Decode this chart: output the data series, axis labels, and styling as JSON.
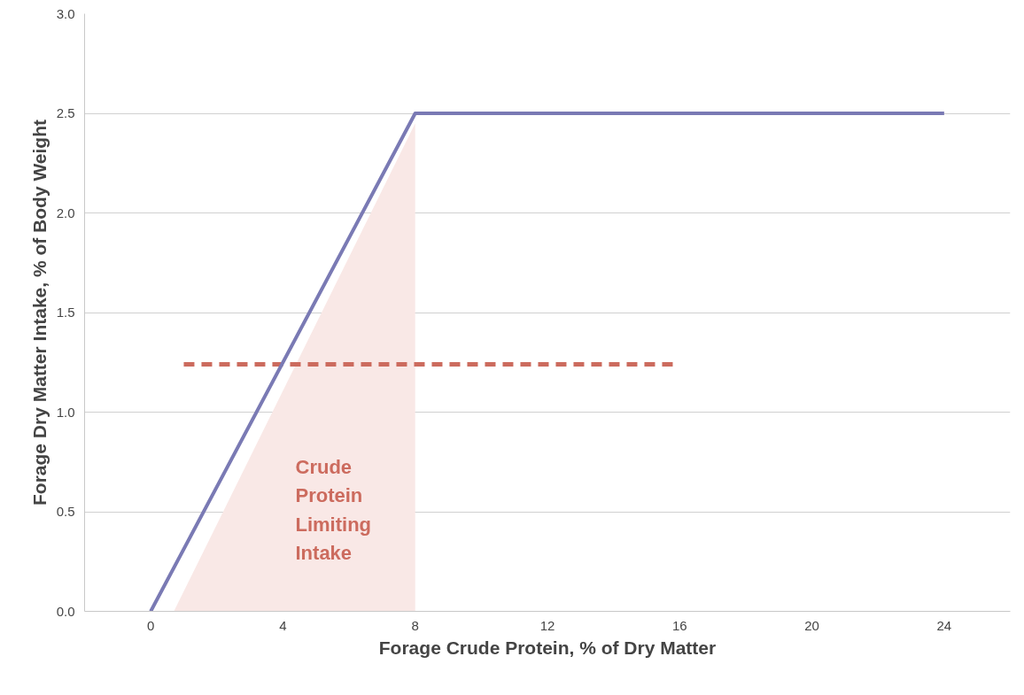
{
  "chart_data": {
    "type": "line",
    "xlabel": "Forage Crude Protein, % of Dry Matter",
    "ylabel": "Forage Dry Matter Intake, % of Body Weight",
    "xlim": [
      -2,
      26
    ],
    "ylim": [
      0,
      3
    ],
    "xticks": [
      0,
      4,
      8,
      12,
      16,
      20,
      24
    ],
    "yticks": [
      {
        "value": 0,
        "label": "0.0"
      },
      {
        "value": 0.5,
        "label": "0.5"
      },
      {
        "value": 1,
        "label": "1.0"
      },
      {
        "value": 1.5,
        "label": "1.5"
      },
      {
        "value": 2,
        "label": "2.0"
      },
      {
        "value": 2.5,
        "label": "2.5"
      },
      {
        "value": 3,
        "label": "3.0"
      }
    ],
    "grid": "y",
    "series": [
      {
        "type": "area",
        "color": "#f9e8e6",
        "x": [
          0.7,
          8
        ],
        "values": [
          0,
          2.45
        ]
      },
      {
        "color": "#cc6b5e",
        "line_style": "dashed",
        "x": [
          1,
          15.8
        ],
        "values": [
          1.24,
          1.24
        ]
      },
      {
        "color": "#7a7ab4",
        "line_style": "solid",
        "x": [
          0,
          8,
          24
        ],
        "values": [
          0,
          2.5,
          2.5
        ]
      }
    ],
    "annotations": [
      "Crude\nProtein\nLimiting\nIntake"
    ]
  }
}
